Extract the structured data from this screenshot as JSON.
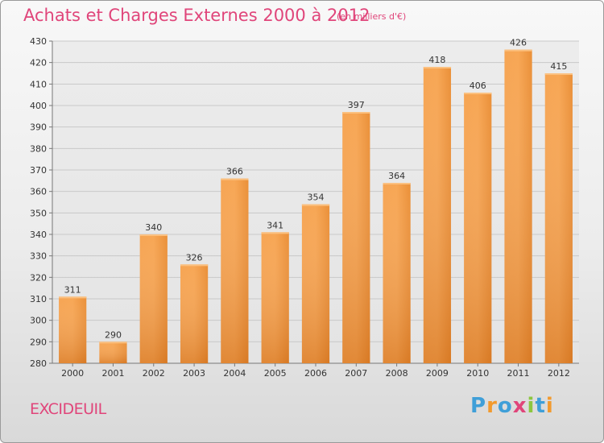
{
  "header": {
    "title": "Achats et Charges Externes 2000 à 2012",
    "subtitle": "(en milliers d'€)"
  },
  "footer": {
    "place": "EXCIDEUIL",
    "logo": {
      "letters": [
        "P",
        "r",
        "o",
        "x",
        "i",
        "t",
        "i"
      ],
      "colors": [
        "#3f9fd8",
        "#f29a2e",
        "#3f9fd8",
        "#e0457a",
        "#8cc63f",
        "#3f9fd8",
        "#f29a2e"
      ]
    }
  },
  "chart_data": {
    "type": "bar",
    "title": "Achats et Charges Externes 2000 à 2012",
    "subtitle": "(en milliers d'€)",
    "categories": [
      "2000",
      "2001",
      "2002",
      "2003",
      "2004",
      "2005",
      "2006",
      "2007",
      "2008",
      "2009",
      "2010",
      "2011",
      "2012"
    ],
    "values": [
      311,
      290,
      340,
      326,
      366,
      341,
      354,
      397,
      364,
      418,
      406,
      426,
      415
    ],
    "ylim": [
      280,
      430
    ],
    "yticks": [
      280,
      290,
      300,
      310,
      320,
      330,
      340,
      350,
      360,
      370,
      380,
      390,
      400,
      410,
      420,
      430
    ],
    "grid": true,
    "bar_color": "#f08a2a",
    "bar_color_light": "#f9a84e"
  }
}
